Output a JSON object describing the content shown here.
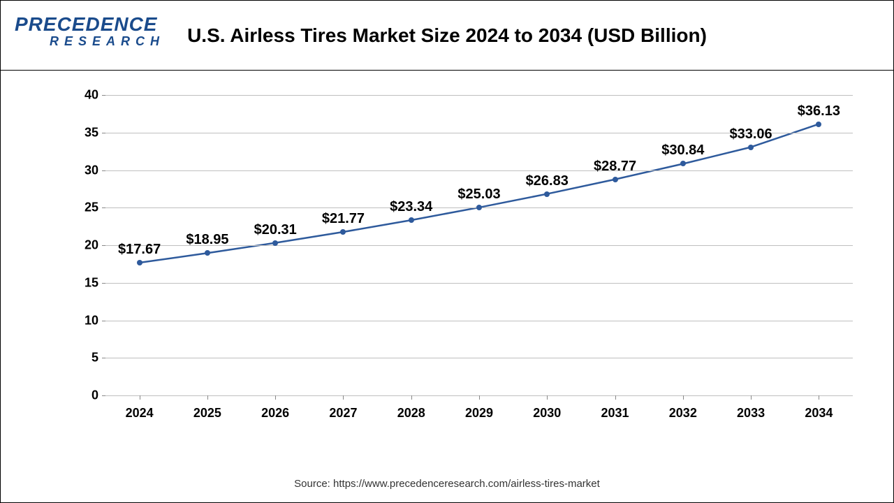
{
  "logo": {
    "main": "PRECEDENCE",
    "sub": "RESEARCH"
  },
  "chart": {
    "title": "U.S. Airless Tires Market Size 2024 to 2034 (USD Billion)",
    "type": "line",
    "years": [
      "2024",
      "2025",
      "2026",
      "2027",
      "2028",
      "2029",
      "2030",
      "2031",
      "2032",
      "2033",
      "2034"
    ],
    "values": [
      17.67,
      18.95,
      20.31,
      21.77,
      23.34,
      25.03,
      26.83,
      28.77,
      30.84,
      33.06,
      36.13
    ],
    "labels": [
      "$17.67",
      "$18.95",
      "$20.31",
      "$21.77",
      "$23.34",
      "$25.03",
      "$26.83",
      "$28.77",
      "$30.84",
      "$33.06",
      "$36.13"
    ],
    "ylim": [
      0,
      40
    ],
    "ytick_step": 5,
    "line_color": "#2e5a9c",
    "marker_color": "#2e5a9c",
    "grid_color": "#bfbfbf",
    "line_width": 2.5,
    "marker_size": 8,
    "background_color": "#ffffff",
    "label_fontsize": 20,
    "tick_fontsize": 18,
    "title_fontsize": 28
  },
  "source": "Source: https://www.precedenceresearch.com/airless-tires-market"
}
